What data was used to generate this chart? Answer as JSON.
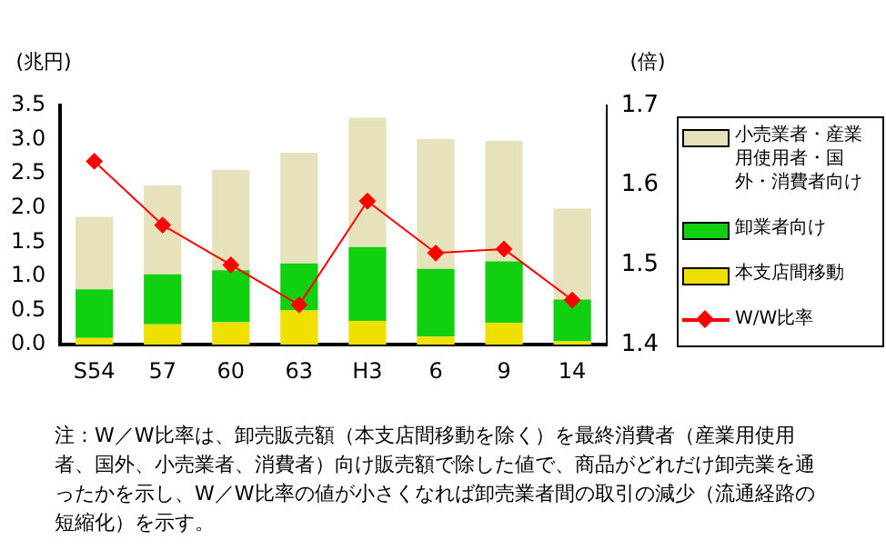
{
  "chart_data": {
    "type": "bar",
    "stacked": true,
    "ylabel": "(兆円)",
    "y2label": "(倍)",
    "categories": [
      "S54",
      "57",
      "60",
      "63",
      "H3",
      "6",
      "9",
      "14"
    ],
    "series": [
      {
        "name": "本支店間移動",
        "color": "#f0e000",
        "values": [
          0.1,
          0.3,
          0.33,
          0.5,
          0.35,
          0.12,
          0.32,
          0.05
        ]
      },
      {
        "name": "卸業者向け",
        "color": "#10d010",
        "values": [
          0.71,
          0.73,
          0.76,
          0.69,
          1.08,
          0.99,
          0.9,
          0.61
        ]
      },
      {
        "name": "小売業者・産業用使用者・国外・消費者向け",
        "color": "#e6e2bc",
        "values": [
          1.06,
          1.3,
          1.47,
          1.62,
          1.89,
          1.9,
          1.76,
          1.33
        ]
      },
      {
        "name": "W/W比率",
        "type": "line",
        "axis": "y2",
        "color": "#ff0000",
        "marker": "diamond",
        "values": [
          1.63,
          1.55,
          1.5,
          1.45,
          1.58,
          1.515,
          1.52,
          1.456
        ]
      }
    ],
    "ylim": [
      0,
      3.5
    ],
    "yticks": [
      {
        "value": 0,
        "label": "0.0"
      },
      0.5,
      {
        "value": 1,
        "label": "1.0"
      },
      1.5,
      {
        "value": 2,
        "label": "2.0"
      },
      2.5,
      {
        "value": 3,
        "label": "3.0"
      },
      3.5
    ],
    "y2lim": [
      1.4,
      1.7
    ],
    "y2ticks": [
      1.4,
      1.5,
      1.6,
      1.7
    ],
    "grid": false,
    "legend": "right",
    "annotations": [
      "注：W／W比率は、卸売販売額（本支店間移動を除く）を最終消費者（産業用使用者、国外、小売業者、消費者）向け販売額で除した値で、商品がどれだけ卸売業を通ったかを示し、W／W比率の値が小さくなれば卸売業者間の取引の減少（流通経路の短縮化）を示す。"
    ]
  }
}
